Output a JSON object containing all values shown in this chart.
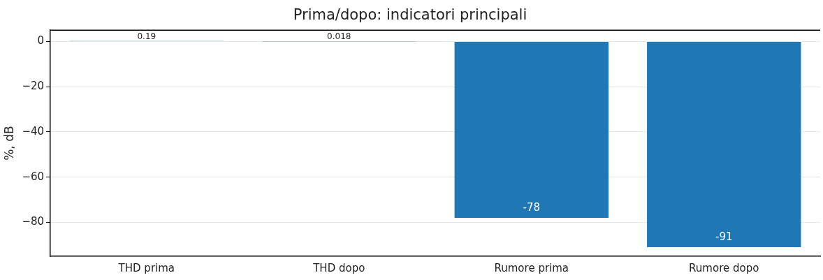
{
  "chart_data": {
    "type": "bar",
    "title": "Prima/dopo: indicatori principali",
    "ylabel": "%, dB",
    "categories": [
      "THD prima",
      "THD dopo",
      "Rumore prima",
      "Rumore dopo"
    ],
    "values": [
      0.19,
      0.018,
      -78,
      -91
    ],
    "color": "#1f77b4",
    "ylim": [
      -95,
      5
    ],
    "yticks": [
      0,
      -20,
      -40,
      -60,
      -80
    ],
    "grid": "y",
    "data_labels": true
  }
}
